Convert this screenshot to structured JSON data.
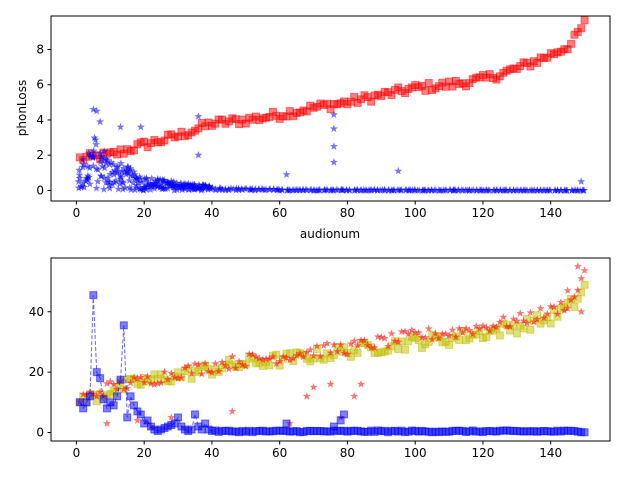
{
  "chart_data": [
    {
      "type": "scatter",
      "xlabel": "audionum",
      "ylabel": "phonLoss",
      "xlim": [
        -7.5,
        157.5
      ],
      "ylim": [
        -0.6,
        9.9
      ],
      "xticks": [
        0,
        20,
        40,
        60,
        80,
        100,
        120,
        140
      ],
      "yticks": [
        0,
        2,
        4,
        6,
        8
      ],
      "grid": false,
      "series": [
        {
          "key": "loss_squares",
          "color": "#ff0000",
          "marker": "square",
          "anchors": [
            [
              1,
              1.8
            ],
            [
              10,
              2.0
            ],
            [
              20,
              2.6
            ],
            [
              30,
              3.1
            ],
            [
              40,
              3.8
            ],
            [
              50,
              4.0
            ],
            [
              60,
              4.3
            ],
            [
              70,
              4.7
            ],
            [
              80,
              5.0
            ],
            [
              90,
              5.4
            ],
            [
              100,
              5.8
            ],
            [
              110,
              6.0
            ],
            [
              120,
              6.3
            ],
            [
              130,
              6.9
            ],
            [
              140,
              7.7
            ],
            [
              146,
              8.3
            ],
            [
              150,
              9.5
            ]
          ],
          "values_note_free": true
        },
        {
          "key": "loss_stars",
          "color": "#0000ff",
          "marker": "star",
          "anchors": [
            [
              1,
              0.9
            ],
            [
              5,
              2.0
            ],
            [
              10,
              1.2
            ],
            [
              20,
              0.5
            ],
            [
              30,
              0.3
            ],
            [
              40,
              0.15
            ],
            [
              60,
              0.05
            ],
            [
              100,
              0.02
            ],
            [
              150,
              0.0
            ]
          ],
          "outliers": [
            [
              5,
              4.6
            ],
            [
              6,
              4.5
            ],
            [
              7,
              3.9
            ],
            [
              13,
              3.6
            ],
            [
              19,
              3.6
            ],
            [
              36,
              4.2
            ],
            [
              36,
              2.0
            ],
            [
              76,
              4.3
            ],
            [
              76,
              3.5
            ],
            [
              76,
              2.5
            ],
            [
              76,
              1.6
            ],
            [
              62,
              0.9
            ],
            [
              95,
              1.1
            ],
            [
              149,
              0.5
            ]
          ]
        }
      ]
    },
    {
      "type": "scatter",
      "xlabel": "",
      "ylabel": "",
      "xlim": [
        -7.5,
        157.5
      ],
      "ylim": [
        -2.8,
        57.8
      ],
      "xticks": [
        0,
        20,
        40,
        60,
        80,
        100,
        120,
        140
      ],
      "yticks": [
        0,
        20,
        40
      ],
      "grid": false,
      "series": [
        {
          "key": "yellow_squares",
          "color": "#bfbf00",
          "marker": "square",
          "anchors": [
            [
              1,
              10
            ],
            [
              10,
              14
            ],
            [
              20,
              17
            ],
            [
              30,
              19
            ],
            [
              40,
              21
            ],
            [
              50,
              23
            ],
            [
              60,
              24
            ],
            [
              70,
              25.5
            ],
            [
              80,
              27
            ],
            [
              90,
              28.5
            ],
            [
              100,
              30
            ],
            [
              110,
              31
            ],
            [
              120,
              33
            ],
            [
              130,
              35
            ],
            [
              140,
              38
            ],
            [
              147,
              43
            ],
            [
              150,
              48
            ]
          ]
        },
        {
          "key": "red_stars",
          "color": "#ff0000",
          "marker": "star",
          "anchors": [
            [
              1,
              11
            ],
            [
              10,
              15
            ],
            [
              20,
              17
            ],
            [
              30,
              20
            ],
            [
              40,
              22
            ],
            [
              50,
              24
            ],
            [
              60,
              25
            ],
            [
              70,
              27
            ],
            [
              80,
              28
            ],
            [
              90,
              30
            ],
            [
              100,
              32
            ],
            [
              110,
              33
            ],
            [
              120,
              35
            ],
            [
              130,
              37
            ],
            [
              140,
              40
            ],
            [
              147,
              44
            ],
            [
              150,
              55
            ]
          ],
          "outliers": [
            [
              9,
              3
            ],
            [
              18,
              4
            ],
            [
              22,
              2
            ],
            [
              28,
              5
            ],
            [
              46,
              7
            ],
            [
              63,
              3
            ],
            [
              68,
              12
            ],
            [
              70,
              15
            ],
            [
              75,
              16
            ],
            [
              78,
              5
            ],
            [
              82,
              12
            ],
            [
              84,
              16
            ],
            [
              148,
              55
            ],
            [
              149,
              40
            ],
            [
              145,
              47
            ]
          ]
        },
        {
          "key": "blue_squares",
          "color": "#0000ff",
          "marker": "square",
          "line": "dashed",
          "points": [
            [
              1,
              10
            ],
            [
              2,
              8
            ],
            [
              3,
              10
            ],
            [
              4,
              12
            ],
            [
              5,
              45.5
            ],
            [
              6,
              20
            ],
            [
              7,
              18
            ],
            [
              8,
              11
            ],
            [
              9,
              8
            ],
            [
              10,
              10
            ],
            [
              11,
              9
            ],
            [
              12,
              12
            ],
            [
              13,
              17.5
            ],
            [
              14,
              35.5
            ],
            [
              15,
              5
            ],
            [
              16,
              12
            ],
            [
              17,
              9
            ],
            [
              18,
              7
            ],
            [
              19,
              6
            ],
            [
              20,
              3
            ],
            [
              21,
              4
            ],
            [
              22,
              2
            ],
            [
              23,
              1
            ],
            [
              24,
              0.5
            ],
            [
              25,
              1
            ],
            [
              26,
              1.5
            ],
            [
              27,
              2
            ],
            [
              28,
              2.5
            ],
            [
              29,
              3
            ],
            [
              30,
              5
            ],
            [
              31,
              2
            ],
            [
              32,
              1
            ],
            [
              33,
              0.5
            ],
            [
              34,
              1
            ],
            [
              35,
              6
            ],
            [
              36,
              2
            ],
            [
              37,
              1
            ],
            [
              38,
              3
            ],
            [
              39,
              1
            ],
            [
              40,
              0.5
            ]
          ],
          "tail_from": 41,
          "tail_level": 0.4,
          "tail_outliers": [
            [
              62,
              3
            ],
            [
              78,
              4
            ],
            [
              79,
              6
            ],
            [
              76,
              2
            ]
          ]
        }
      ]
    }
  ]
}
